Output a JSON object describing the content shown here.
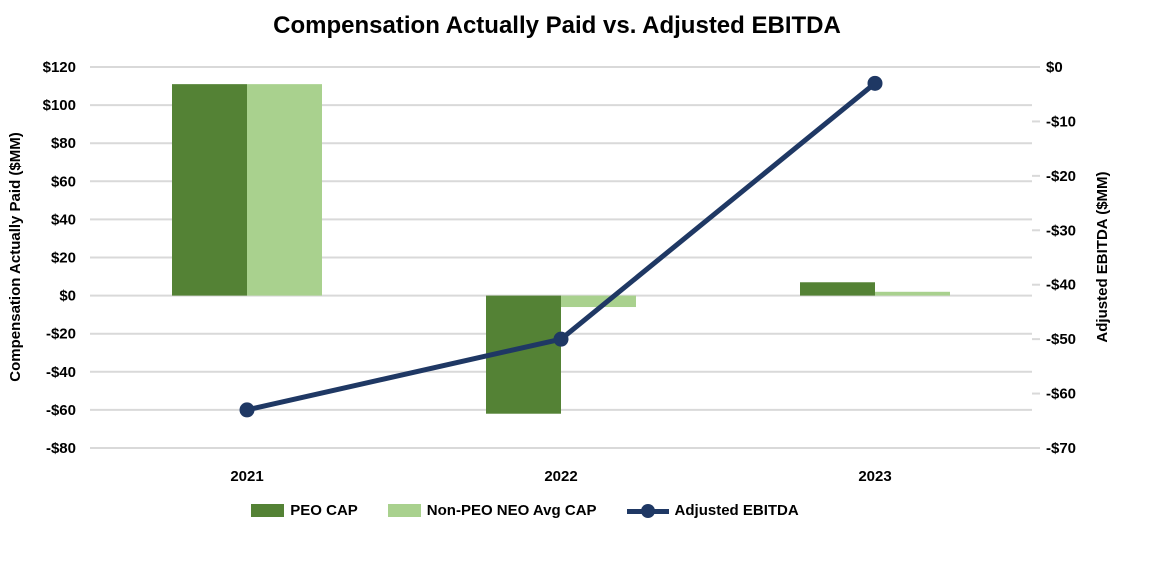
{
  "chart_data": {
    "type": "combo-bar-line",
    "title": "Compensation Actually Paid vs. Adjusted EBITDA",
    "categories": [
      "2021",
      "2022",
      "2023"
    ],
    "series": [
      {
        "name": "PEO CAP",
        "type": "bar",
        "axis": "left",
        "color": "#548235",
        "values": [
          111,
          -62,
          7
        ]
      },
      {
        "name": "Non-PEO NEO Avg CAP",
        "type": "bar",
        "axis": "left",
        "color": "#a9d18e",
        "values": [
          111,
          -6,
          2
        ]
      },
      {
        "name": "Adjusted EBITDA",
        "type": "line",
        "axis": "right",
        "color": "#1f3864",
        "values": [
          -63,
          -50,
          -3
        ]
      }
    ],
    "left_axis": {
      "label": "Compensation Actually Paid ($MM)",
      "min": -80,
      "max": 120,
      "step": 20,
      "tick_values": [
        120,
        100,
        80,
        60,
        40,
        20,
        0,
        -20,
        -40,
        -60,
        -80
      ],
      "tick_labels": [
        "$120",
        "$100",
        "$80",
        "$60",
        "$40",
        "$20",
        "$0",
        "-$20",
        "-$40",
        "-$60",
        "-$80"
      ]
    },
    "right_axis": {
      "label": "Adjusted EBITDA ($MM)",
      "min": -70,
      "max": 0,
      "step": 10,
      "tick_values": [
        0,
        -10,
        -20,
        -30,
        -40,
        -50,
        -60,
        -70
      ],
      "tick_labels": [
        "$0",
        "-$10",
        "-$20",
        "-$30",
        "-$40",
        "-$50",
        "-$60",
        "-$70"
      ]
    },
    "grid": true,
    "legend_position": "bottom",
    "colors": {
      "gridline": "#d9d9d9",
      "text": "#000000",
      "background": "#ffffff"
    }
  }
}
